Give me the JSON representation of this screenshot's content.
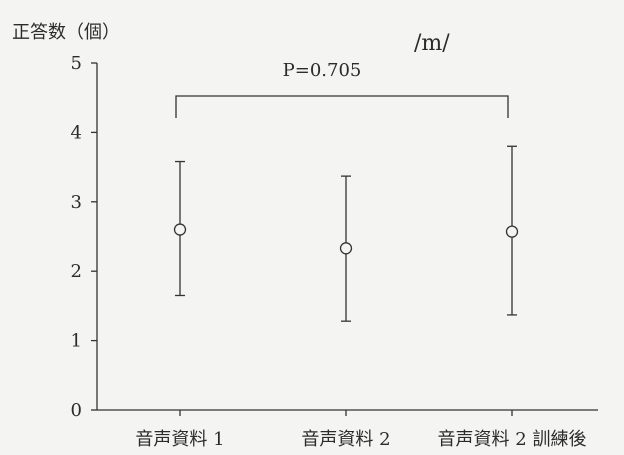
{
  "chart_data": {
    "type": "scatter",
    "title": "/m/",
    "ylabel": "正答数（個）",
    "xlabel": "",
    "ylim": [
      0,
      5
    ],
    "yticks": [
      0,
      1,
      2,
      3,
      4,
      5
    ],
    "categories": [
      "音声資料 1",
      "音声資料 2",
      "音声資料 2 訓練後"
    ],
    "series": [
      {
        "values": [
          2.6,
          2.33,
          2.57
        ],
        "error_low": [
          1.65,
          1.28,
          1.37
        ],
        "error_high": [
          3.58,
          3.37,
          3.8
        ]
      }
    ],
    "annotation": {
      "text": "P=0.705",
      "between": [
        "音声資料 1",
        "音声資料 2 訓練後"
      ]
    },
    "grid": false,
    "legend": "none"
  }
}
